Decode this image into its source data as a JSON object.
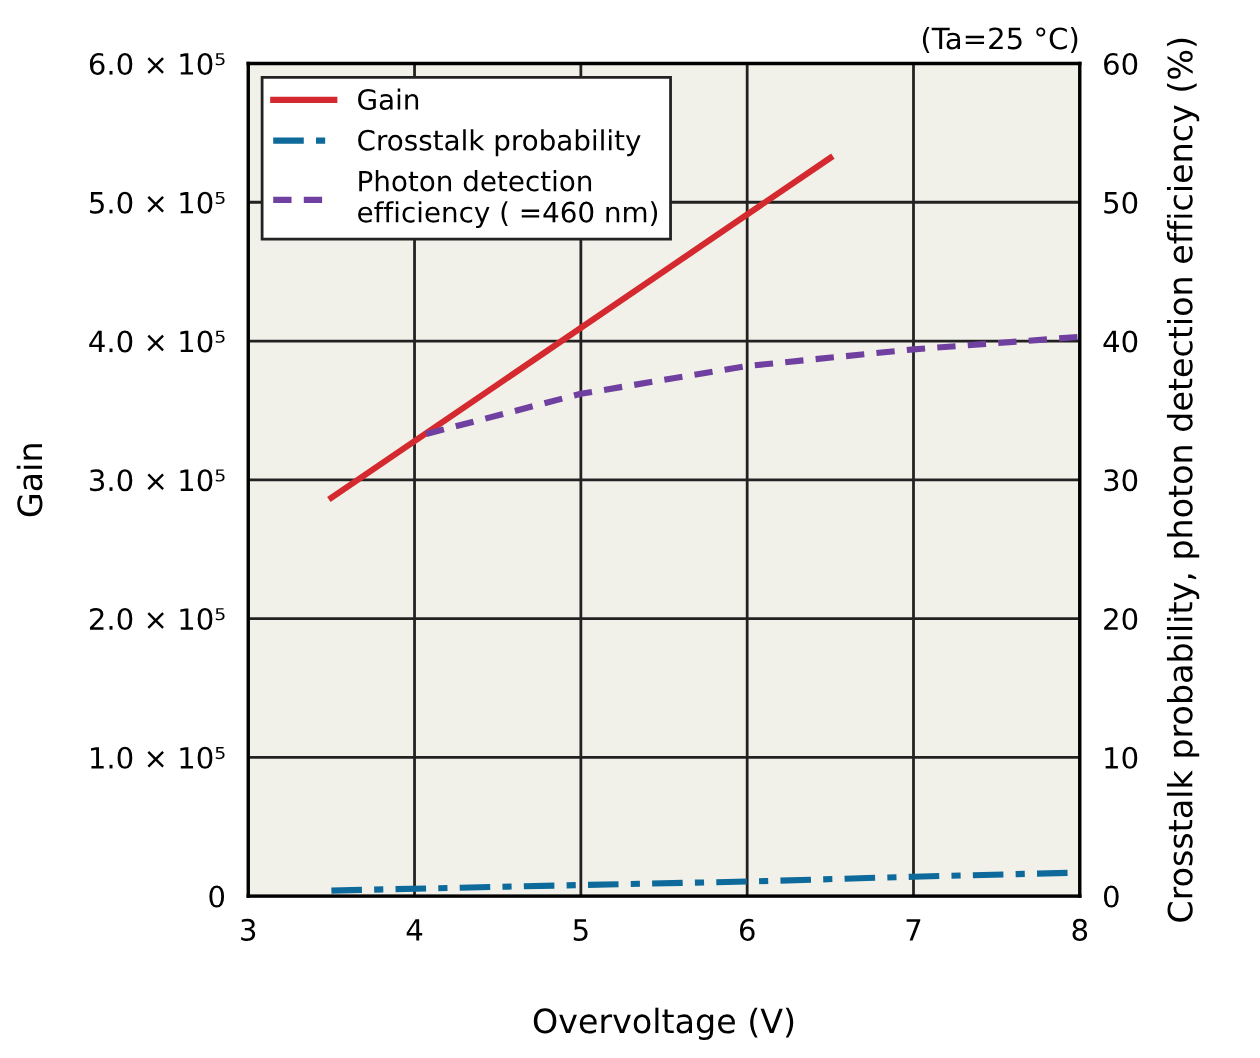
{
  "chart_data": {
    "type": "line",
    "xlabel": "Overvoltage (V)",
    "ylabel": "Gain",
    "y2label": "Crosstalk probability, photon detection efficiency (%)",
    "annotations": [
      "(Ta=25 °C)"
    ],
    "series": [
      {
        "name": "Gain",
        "color": "#d42a2f",
        "line_style": "solid",
        "x": [
          3.5,
          6.5
        ],
        "values": [
          287000,
          532000
        ]
      },
      {
        "name": "Crosstalk probability",
        "color": "#0d6a9a",
        "line_style": "dashdot",
        "axis": "y2",
        "x": [
          3.5,
          5,
          6,
          7,
          8
        ],
        "values": [
          0.4,
          0.8,
          1.05,
          1.4,
          1.7
        ]
      },
      {
        "name": "Photon detection\nefficiency ( =460 nm)",
        "color": "#7040a0",
        "line_style": "dashed",
        "axis": "y2",
        "x": [
          4.07,
          5,
          6,
          7,
          8
        ],
        "values": [
          33.3,
          36.2,
          38.2,
          39.4,
          40.3
        ]
      }
    ],
    "xlim": [
      3,
      8
    ],
    "xticks": [
      3,
      4,
      5,
      6,
      7,
      8
    ],
    "ylim": [
      0,
      600000
    ],
    "yticks": [
      {
        "value": 0,
        "label": "0"
      },
      {
        "value": 100000,
        "label": "1.0 × 10⁵"
      },
      {
        "value": 200000,
        "label": "2.0 × 10⁵"
      },
      {
        "value": 300000,
        "label": "3.0 × 10⁵"
      },
      {
        "value": 400000,
        "label": "4.0 × 10⁵"
      },
      {
        "value": 500000,
        "label": "5.0 × 10⁵"
      },
      {
        "value": 600000,
        "label": "6.0 × 10⁵"
      }
    ],
    "y2lim": [
      0,
      60
    ],
    "y2ticks": [
      0,
      10,
      20,
      30,
      40,
      50,
      60
    ],
    "grid": true,
    "legend": "top left",
    "marker": "none"
  }
}
